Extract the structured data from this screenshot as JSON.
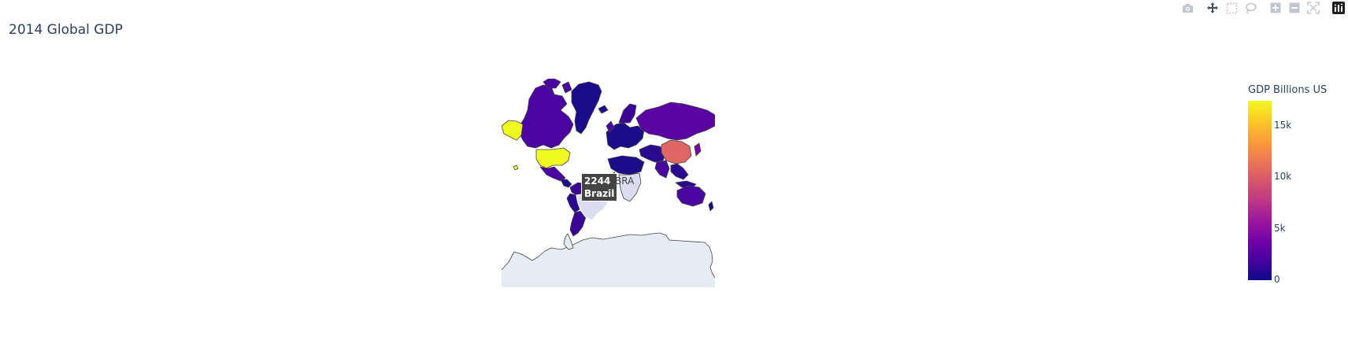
{
  "title": "2014 Global GDP",
  "modebar": [
    {
      "name": "camera-icon"
    },
    {
      "name": "pan-icon"
    },
    {
      "name": "box-select-icon"
    },
    {
      "name": "lasso-icon"
    },
    {
      "name": "zoom-in-icon"
    },
    {
      "name": "zoom-out-icon"
    },
    {
      "name": "reset-axes-icon"
    },
    {
      "name": "plotly-logo-icon"
    }
  ],
  "colorbar": {
    "title": "GDP Billions US",
    "ticks": [
      "15k",
      "10k",
      "5k",
      "0"
    ],
    "tick_values": [
      15000,
      10000,
      5000,
      0
    ],
    "range": [
      0,
      17420
    ],
    "colorscale": [
      "#0d0887",
      "#46039f",
      "#7201a8",
      "#9c179e",
      "#bd3786",
      "#d8576b",
      "#ed7953",
      "#fb9f3a",
      "#fdca26",
      "#f0f921"
    ]
  },
  "hover": {
    "value": "2244",
    "country": "Brazil",
    "code": "BRA"
  },
  "colors": {
    "land_background": "#e5ecf6",
    "country_border": "#444444",
    "hover_fill": "#dcdcf0"
  }
}
